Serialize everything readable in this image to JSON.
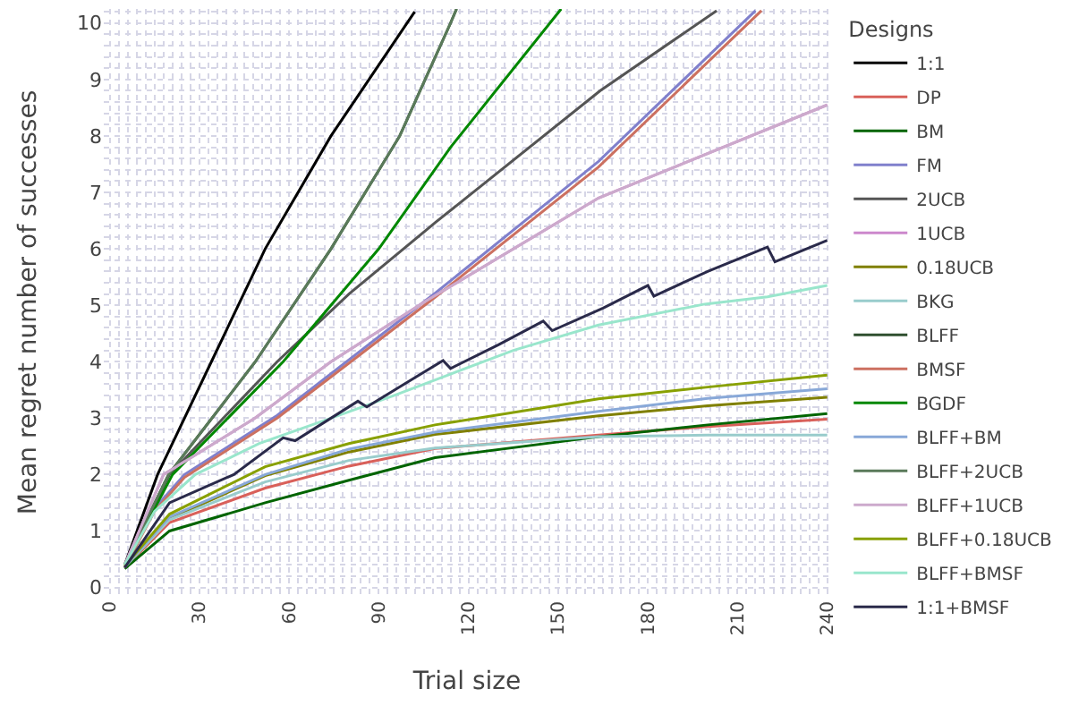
{
  "chart_data": {
    "type": "line",
    "xlabel": "Trial size",
    "ylabel": "Mean regret number of successes",
    "legend_title": "Designs",
    "legend": "right",
    "grid": true,
    "marker": "none",
    "line_style": "solid",
    "xlim": [
      -2,
      241
    ],
    "xticks": [
      0,
      30,
      60,
      90,
      120,
      150,
      180,
      210,
      240
    ],
    "ylim": [
      -0.15,
      10.25
    ],
    "yticks": [
      0,
      1,
      2,
      3,
      4,
      5,
      6,
      7,
      8,
      9,
      10
    ],
    "series": [
      {
        "name": "1:1",
        "color": "#000000",
        "x": [
          5,
          16,
          34,
          52,
          74,
          102
        ],
        "values": [
          0.4,
          2,
          4,
          6,
          8,
          10.2
        ]
      },
      {
        "name": "DP",
        "color": "#d9605a",
        "x": [
          5,
          20,
          52,
          80,
          108.8,
          163.5,
          200,
          240
        ],
        "values": [
          0.35,
          1.15,
          1.76,
          2.15,
          2.46,
          2.7,
          2.85,
          2.98
        ]
      },
      {
        "name": "BM",
        "color": "#006400",
        "x": [
          5,
          20,
          52,
          80,
          108.8,
          163.5,
          200,
          240
        ],
        "values": [
          0.33,
          1.0,
          1.5,
          1.9,
          2.3,
          2.67,
          2.88,
          3.08
        ]
      },
      {
        "name": "FM",
        "color": "#8080cc",
        "x": [
          5,
          15,
          25,
          56,
          109,
          163.5,
          216
        ],
        "values": [
          0.35,
          1.4,
          2,
          3.05,
          5.22,
          7.55,
          10.22
        ]
      },
      {
        "name": "2UCB",
        "color": "#555555",
        "x": [
          5,
          20,
          56,
          80,
          109,
          164,
          203
        ],
        "values": [
          0.4,
          2,
          4,
          5.2,
          6.47,
          8.8,
          10.22
        ]
      },
      {
        "name": "1UCB",
        "color": "#cc88cc",
        "x": [
          5,
          18,
          48.6,
          74,
          105,
          163.5,
          240
        ],
        "values": [
          0.4,
          2,
          3,
          4,
          5.05,
          6.9,
          8.55
        ]
      },
      {
        "name": "0.18UCB",
        "color": "#808000",
        "x": [
          5,
          20,
          52,
          80,
          108.8,
          163.5,
          200,
          240
        ],
        "values": [
          0.36,
          1.22,
          1.98,
          2.4,
          2.71,
          3.04,
          3.22,
          3.37
        ]
      },
      {
        "name": "BKG",
        "color": "#99cccc",
        "x": [
          5,
          20,
          52,
          80,
          108.8,
          163.5,
          200,
          240
        ],
        "values": [
          0.36,
          1.2,
          1.87,
          2.25,
          2.47,
          2.67,
          2.7,
          2.7
        ]
      },
      {
        "name": "BLFF",
        "color": "#2f4f2f",
        "x": [
          5,
          19.7,
          48.7,
          74,
          97,
          114,
          116
        ],
        "values": [
          0.4,
          2,
          4,
          6,
          8,
          10,
          10.25
        ]
      },
      {
        "name": "BMSF",
        "color": "#cc7060",
        "x": [
          5,
          15,
          25,
          56,
          109,
          163.5,
          218
        ],
        "values": [
          0.35,
          1.35,
          1.95,
          3.0,
          5.15,
          7.45,
          10.22
        ]
      },
      {
        "name": "BGDF",
        "color": "#008800",
        "x": [
          5,
          21,
          58,
          90,
          114,
          151
        ],
        "values": [
          0.4,
          2,
          4,
          6,
          7.8,
          10.25
        ]
      },
      {
        "name": "BLFF+BM",
        "color": "#88a8d8",
        "x": [
          5,
          20,
          52,
          80,
          108.8,
          163.5,
          200,
          240
        ],
        "values": [
          0.37,
          1.25,
          2.0,
          2.45,
          2.75,
          3.12,
          3.35,
          3.52
        ]
      },
      {
        "name": "BLFF+2UCB",
        "color": "#5a7a5a",
        "x": [
          5,
          19.7,
          48.7,
          74,
          97,
          114,
          116
        ],
        "values": [
          0.4,
          2,
          4,
          6,
          8,
          10,
          10.25
        ]
      },
      {
        "name": "BLFF+1UCB",
        "color": "#ccaacc",
        "x": [
          5,
          18,
          48.6,
          74,
          105,
          163.5,
          240
        ],
        "values": [
          0.4,
          2,
          3,
          4,
          5.05,
          6.9,
          8.55
        ]
      },
      {
        "name": "BLFF+0.18UCB",
        "color": "#88a000",
        "x": [
          5,
          20,
          52,
          80,
          108.8,
          163.5,
          200,
          240
        ],
        "values": [
          0.38,
          1.3,
          2.14,
          2.55,
          2.88,
          3.34,
          3.55,
          3.76
        ]
      },
      {
        "name": "BLFF+BMSF",
        "color": "#99e6cc",
        "x": [
          5,
          15,
          28.6,
          50,
          74,
          95,
          114,
          135,
          163.5,
          199,
          220,
          240
        ],
        "values": [
          0.4,
          1.35,
          2,
          2.55,
          3.0,
          3.4,
          3.78,
          4.2,
          4.65,
          5.02,
          5.15,
          5.35
        ]
      },
      {
        "name": "1:1+BMSF",
        "color": "#2a2a4a",
        "x": [
          5,
          20,
          41.5,
          58,
          62,
          83,
          86,
          100,
          111.5,
          114,
          130,
          145,
          148,
          165,
          180,
          182,
          200,
          220,
          222.5,
          240
        ],
        "values": [
          0.35,
          1.5,
          2.0,
          2.65,
          2.6,
          3.3,
          3.2,
          3.65,
          4.02,
          3.88,
          4.3,
          4.72,
          4.55,
          4.95,
          5.35,
          5.16,
          5.6,
          6.03,
          5.77,
          6.15
        ]
      }
    ]
  }
}
